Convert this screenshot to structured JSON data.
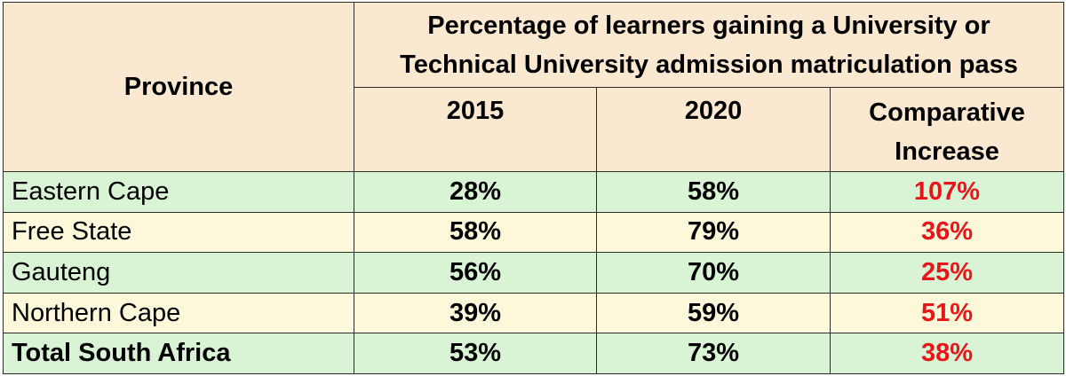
{
  "header": {
    "province": "Province",
    "super_header_line1": "Percentage of learners gaining a University or",
    "super_header_line2": "Technical University admission matriculation pass",
    "col_2015": "2015",
    "col_2020": "2020",
    "col_increase_line1": "Comparative",
    "col_increase_line2": "Increase"
  },
  "rows": [
    {
      "province": "Eastern Cape",
      "y2015": "28%",
      "y2020": "58%",
      "increase": "107%"
    },
    {
      "province": "Free State",
      "y2015": "58%",
      "y2020": "79%",
      "increase": "36%"
    },
    {
      "province": "Gauteng",
      "y2015": "56%",
      "y2020": "70%",
      "increase": "25%"
    },
    {
      "province": "Northern Cape",
      "y2015": "39%",
      "y2020": "59%",
      "increase": "51%"
    },
    {
      "province": "Total South Africa",
      "y2015": "53%",
      "y2020": "73%",
      "increase": "38%"
    }
  ],
  "colors": {
    "header_bg": "#fbe8d0",
    "row_green": "#d9f4d4",
    "row_cream": "#fdf8d9",
    "increase_text": "#e8151b"
  }
}
